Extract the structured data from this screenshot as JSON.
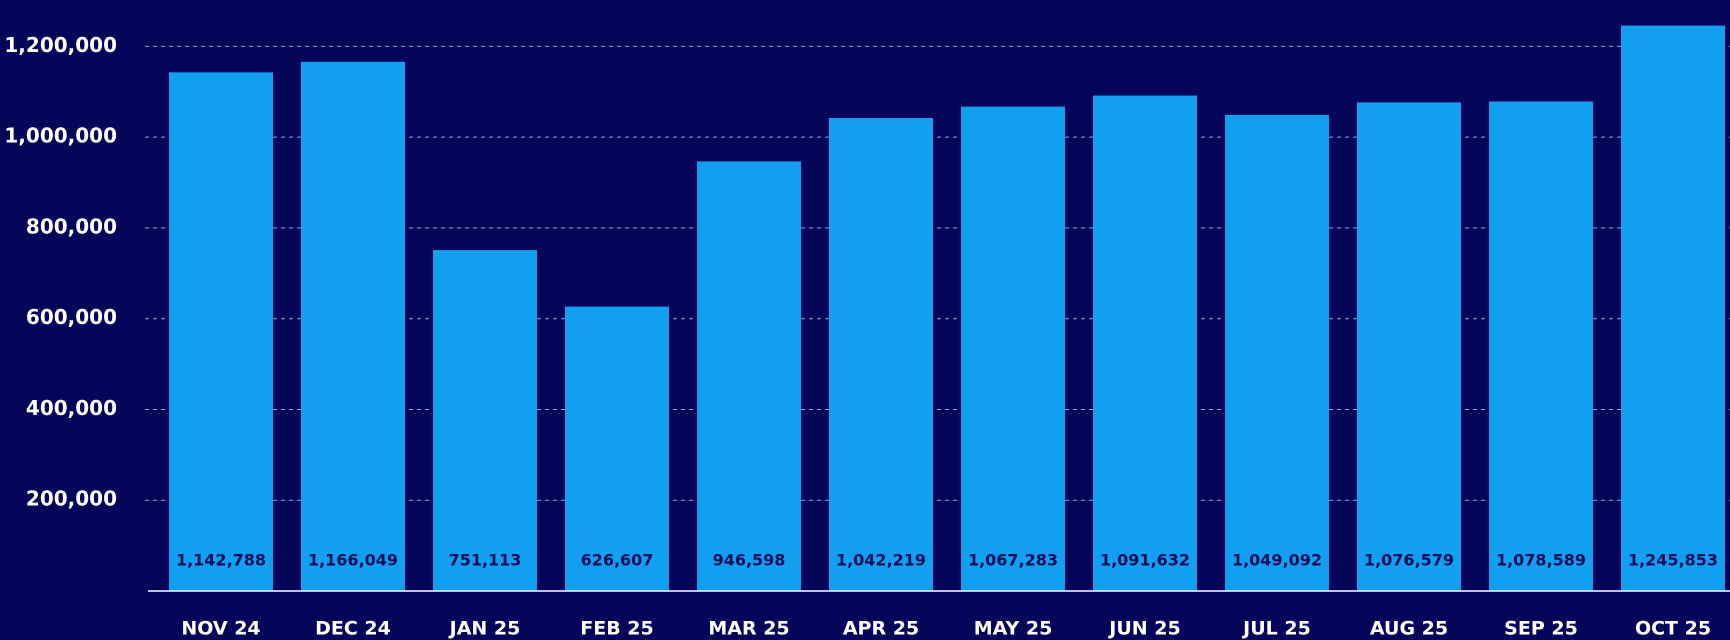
{
  "chart_data": {
    "type": "bar",
    "categories": [
      "NOV 24",
      "DEC 24",
      "JAN 25",
      "FEB 25",
      "MAR 25",
      "APR 25",
      "MAY 25",
      "JUN 25",
      "JUL 25",
      "AUG 25",
      "SEP 25",
      "OCT 25"
    ],
    "values": [
      1142788,
      1166049,
      751113,
      626607,
      946598,
      1042219,
      1067283,
      1091632,
      1049092,
      1076579,
      1078589,
      1245853
    ],
    "value_labels": [
      "1,142,788",
      "1,166,049",
      "751,113",
      "626,607",
      "946,598",
      "1,042,219",
      "1,067,283",
      "1,091,632",
      "1,049,092",
      "1,076,579",
      "1,078,589",
      "1,245,853"
    ],
    "color": "#139ff0",
    "ylim": [
      0,
      1300000
    ],
    "yticks": [
      {
        "value": 200000,
        "label": "200,000"
      },
      {
        "value": 400000,
        "label": "400,000"
      },
      {
        "value": 600000,
        "label": "600,000"
      },
      {
        "value": 800000,
        "label": "800,000"
      },
      {
        "value": 1000000,
        "label": "1,000,000"
      },
      {
        "value": 1200000,
        "label": "1,200,000"
      }
    ],
    "grid": true
  }
}
